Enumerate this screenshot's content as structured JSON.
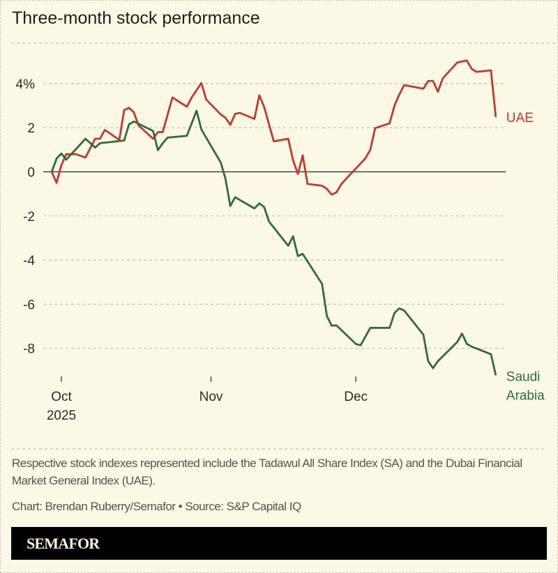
{
  "title": "Three-month stock performance",
  "chart_data": {
    "type": "line",
    "title": "Three-month stock performance",
    "xlabel": "",
    "ylabel": "",
    "ylim": [
      -9.3,
      5.8
    ],
    "y_ticks": [
      4,
      2,
      0,
      -2,
      -4,
      -6,
      -8
    ],
    "y_tick_labels": [
      "4%",
      "2",
      "0",
      "-2",
      "-4",
      "-6",
      "-8"
    ],
    "x_ticks": [
      {
        "date": "2025-10-01",
        "label": "Oct",
        "sublabel": "2025"
      },
      {
        "date": "2025-11-01",
        "label": "Nov",
        "sublabel": ""
      },
      {
        "date": "2025-12-01",
        "label": "Dec",
        "sublabel": ""
      }
    ],
    "grid": true,
    "legend": "direct labels at line ends",
    "series": [
      {
        "name": "UAE",
        "color": "#c0392b",
        "points": [
          [
            "2025-09-29",
            0
          ],
          [
            "2025-09-30",
            -0.5
          ],
          [
            "2025-10-01",
            0.3
          ],
          [
            "2025-10-02",
            0.8
          ],
          [
            "2025-10-04",
            0.8
          ],
          [
            "2025-10-06",
            0.65
          ],
          [
            "2025-10-08",
            1.5
          ],
          [
            "2025-10-09",
            1.5
          ],
          [
            "2025-10-10",
            1.9
          ],
          [
            "2025-10-13",
            1.45
          ],
          [
            "2025-10-14",
            2.8
          ],
          [
            "2025-10-15",
            2.9
          ],
          [
            "2025-10-16",
            2.7
          ],
          [
            "2025-10-17",
            2.1
          ],
          [
            "2025-10-20",
            1.5
          ],
          [
            "2025-10-21",
            1.8
          ],
          [
            "2025-10-22",
            1.8
          ],
          [
            "2025-10-24",
            3.37
          ],
          [
            "2025-10-27",
            2.95
          ],
          [
            "2025-10-28",
            3.37
          ],
          [
            "2025-10-30",
            4.03
          ],
          [
            "2025-10-31",
            3.28
          ],
          [
            "2025-11-03",
            2.6
          ],
          [
            "2025-11-04",
            2.45
          ],
          [
            "2025-11-05",
            2.13
          ],
          [
            "2025-11-06",
            2.63
          ],
          [
            "2025-11-07",
            2.67
          ],
          [
            "2025-11-10",
            2.4
          ],
          [
            "2025-11-11",
            3.47
          ],
          [
            "2025-11-12",
            2.95
          ],
          [
            "2025-11-14",
            1.38
          ],
          [
            "2025-11-17",
            1.5
          ],
          [
            "2025-11-18",
            0.52
          ],
          [
            "2025-11-19",
            -0.1
          ],
          [
            "2025-11-20",
            0.75
          ],
          [
            "2025-11-21",
            -0.55
          ],
          [
            "2025-11-24",
            -0.63
          ],
          [
            "2025-11-25",
            -0.77
          ],
          [
            "2025-11-26",
            -1.03
          ],
          [
            "2025-11-27",
            -0.93
          ],
          [
            "2025-11-28",
            -0.55
          ],
          [
            "2025-12-03",
            0.62
          ],
          [
            "2025-12-04",
            1.0
          ],
          [
            "2025-12-05",
            1.98
          ],
          [
            "2025-12-08",
            2.2
          ],
          [
            "2025-12-09",
            3.0
          ],
          [
            "2025-12-10",
            3.5
          ],
          [
            "2025-12-11",
            3.93
          ],
          [
            "2025-12-15",
            3.77
          ],
          [
            "2025-12-16",
            4.12
          ],
          [
            "2025-12-17",
            4.12
          ],
          [
            "2025-12-18",
            3.63
          ],
          [
            "2025-12-19",
            4.23
          ],
          [
            "2025-12-22",
            4.95
          ],
          [
            "2025-12-24",
            5.05
          ],
          [
            "2025-12-25",
            4.67
          ],
          [
            "2025-12-26",
            4.53
          ],
          [
            "2025-12-29",
            4.6
          ],
          [
            "2025-12-30",
            2.48
          ]
        ]
      },
      {
        "name": "Saudi Arabia",
        "label_lines": [
          "Saudi",
          "Arabia"
        ],
        "color": "#2e6b3e",
        "points": [
          [
            "2025-09-29",
            0
          ],
          [
            "2025-09-30",
            0.6
          ],
          [
            "2025-10-01",
            0.83
          ],
          [
            "2025-10-02",
            0.55
          ],
          [
            "2025-10-06",
            1.5
          ],
          [
            "2025-10-08",
            1.1
          ],
          [
            "2025-10-09",
            1.3
          ],
          [
            "2025-10-14",
            1.42
          ],
          [
            "2025-10-15",
            2.15
          ],
          [
            "2025-10-16",
            2.28
          ],
          [
            "2025-10-20",
            1.85
          ],
          [
            "2025-10-21",
            0.98
          ],
          [
            "2025-10-22",
            1.3
          ],
          [
            "2025-10-23",
            1.55
          ],
          [
            "2025-10-27",
            1.63
          ],
          [
            "2025-10-29",
            2.77
          ],
          [
            "2025-10-30",
            1.92
          ],
          [
            "2025-11-03",
            0.43
          ],
          [
            "2025-11-04",
            -0.32
          ],
          [
            "2025-11-05",
            -1.55
          ],
          [
            "2025-11-06",
            -1.15
          ],
          [
            "2025-11-10",
            -1.66
          ],
          [
            "2025-11-11",
            -1.43
          ],
          [
            "2025-11-12",
            -1.59
          ],
          [
            "2025-11-13",
            -2.25
          ],
          [
            "2025-11-17",
            -3.35
          ],
          [
            "2025-11-18",
            -2.92
          ],
          [
            "2025-11-19",
            -3.82
          ],
          [
            "2025-11-20",
            -3.72
          ],
          [
            "2025-11-24",
            -5.08
          ],
          [
            "2025-11-25",
            -6.53
          ],
          [
            "2025-11-26",
            -6.97
          ],
          [
            "2025-11-27",
            -6.96
          ],
          [
            "2025-12-01",
            -7.8
          ],
          [
            "2025-12-02",
            -7.86
          ],
          [
            "2025-12-04",
            -7.07
          ],
          [
            "2025-12-05",
            -7.07
          ],
          [
            "2025-12-08",
            -7.07
          ],
          [
            "2025-12-09",
            -6.4
          ],
          [
            "2025-12-10",
            -6.19
          ],
          [
            "2025-12-11",
            -6.28
          ],
          [
            "2025-12-15",
            -7.38
          ],
          [
            "2025-12-16",
            -8.58
          ],
          [
            "2025-12-17",
            -8.9
          ],
          [
            "2025-12-18",
            -8.58
          ],
          [
            "2025-12-22",
            -7.72
          ],
          [
            "2025-12-23",
            -7.33
          ],
          [
            "2025-12-24",
            -7.8
          ],
          [
            "2025-12-25",
            -7.92
          ],
          [
            "2025-12-29",
            -8.27
          ],
          [
            "2025-12-30",
            -9.22
          ]
        ]
      }
    ]
  },
  "footer": {
    "note": "Respective stock indexes represented include the Tadawul All Share Index (SA) and the Dubai Financial Market General Index (UAE).",
    "credit": "Chart: Brendan Ruberry/Semafor • Source: S&P Capital IQ",
    "logo": "SEMAFOR"
  }
}
